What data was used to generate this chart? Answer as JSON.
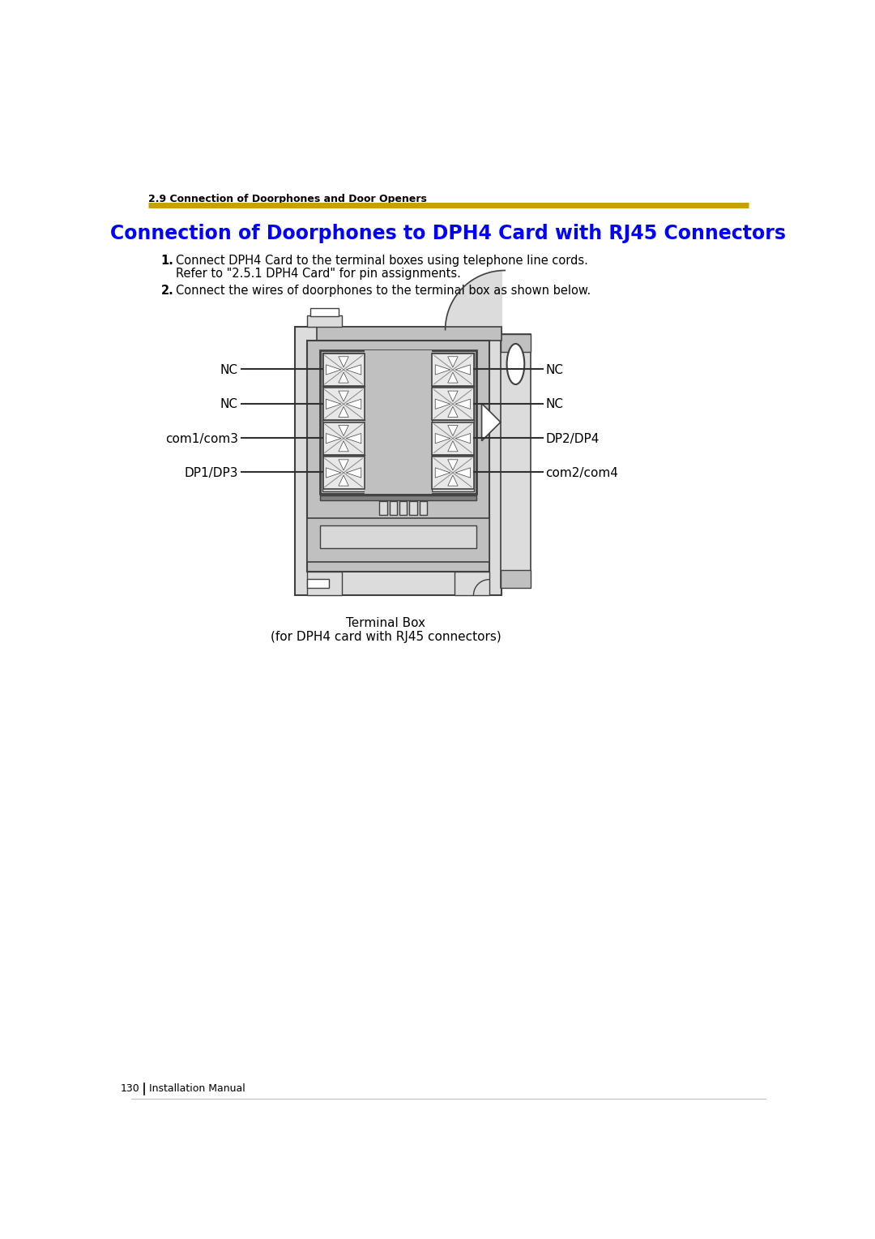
{
  "page_title": "2.9 Connection of Doorphones and Door Openers",
  "section_title": "Connection of Doorphones to DPH4 Card with RJ45 Connectors",
  "step1_bold": "1.",
  "step1_line1": "Connect DPH4 Card to the terminal boxes using telephone line cords.",
  "step1_line2": "Refer to \"2.5.1 DPH4 Card\" for pin assignments.",
  "step2_bold": "2.",
  "step2_text": "Connect the wires of doorphones to the terminal box as shown below.",
  "caption_line1": "Terminal Box",
  "caption_line2": "(for DPH4 card with RJ45 connectors)",
  "title_color": "#0000FF",
  "gold_color": "#C8A000",
  "text_color": "#000000",
  "bg_color": "#FFFFFF",
  "left_labels": [
    "NC",
    "NC",
    "com1/com3",
    "DP1/DP3"
  ],
  "right_labels": [
    "NC",
    "NC",
    "DP2/DP4",
    "com2/com4"
  ],
  "gray_light": "#DCDCDC",
  "gray_mid": "#C0C0C0",
  "gray_dark": "#A0A0A0",
  "gray_darker": "#808080",
  "outline_color": "#404040",
  "line_color": "#303030"
}
